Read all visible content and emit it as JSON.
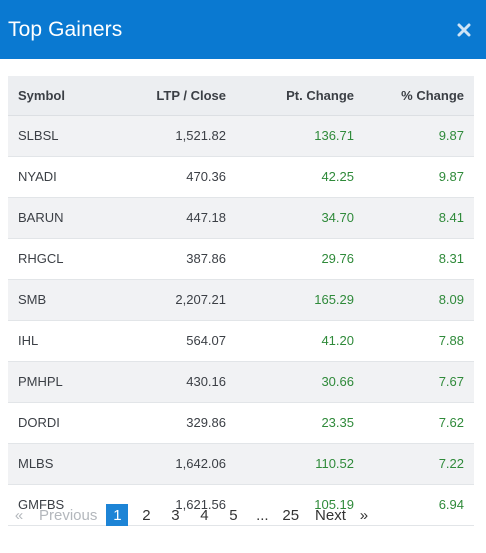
{
  "modal": {
    "title": "Top Gainers",
    "close_glyph": "×"
  },
  "table": {
    "headers": {
      "symbol": "Symbol",
      "ltp": "LTP / Close",
      "pt_change": "Pt. Change",
      "pct_change": "% Change"
    },
    "rows": [
      {
        "symbol": "SLBSL",
        "ltp": "1,521.82",
        "pt_change": "136.71",
        "pct_change": "9.87"
      },
      {
        "symbol": "NYADI",
        "ltp": "470.36",
        "pt_change": "42.25",
        "pct_change": "9.87"
      },
      {
        "symbol": "BARUN",
        "ltp": "447.18",
        "pt_change": "34.70",
        "pct_change": "8.41"
      },
      {
        "symbol": "RHGCL",
        "ltp": "387.86",
        "pt_change": "29.76",
        "pct_change": "8.31"
      },
      {
        "symbol": "SMB",
        "ltp": "2,207.21",
        "pt_change": "165.29",
        "pct_change": "8.09"
      },
      {
        "symbol": "IHL",
        "ltp": "564.07",
        "pt_change": "41.20",
        "pct_change": "7.88"
      },
      {
        "symbol": "PMHPL",
        "ltp": "430.16",
        "pt_change": "30.66",
        "pct_change": "7.67"
      },
      {
        "symbol": "DORDI",
        "ltp": "329.86",
        "pt_change": "23.35",
        "pct_change": "7.62"
      },
      {
        "symbol": "MLBS",
        "ltp": "1,642.06",
        "pt_change": "110.52",
        "pct_change": "7.22"
      },
      {
        "symbol": "GMFBS",
        "ltp": "1,621.56",
        "pt_change": "105.19",
        "pct_change": "6.94"
      }
    ]
  },
  "pagination": {
    "first_glyph": "«",
    "previous": "Previous",
    "pages": [
      "1",
      "2",
      "3",
      "4",
      "5"
    ],
    "ellipsis": "...",
    "last_page": "25",
    "next": "Next",
    "last_glyph": "»",
    "active_page": "1"
  },
  "colors": {
    "header_bg": "#0a79d1",
    "positive": "#2f8a3a",
    "active_page": "#1d84d6"
  },
  "icons": {
    "close": "close-icon"
  }
}
